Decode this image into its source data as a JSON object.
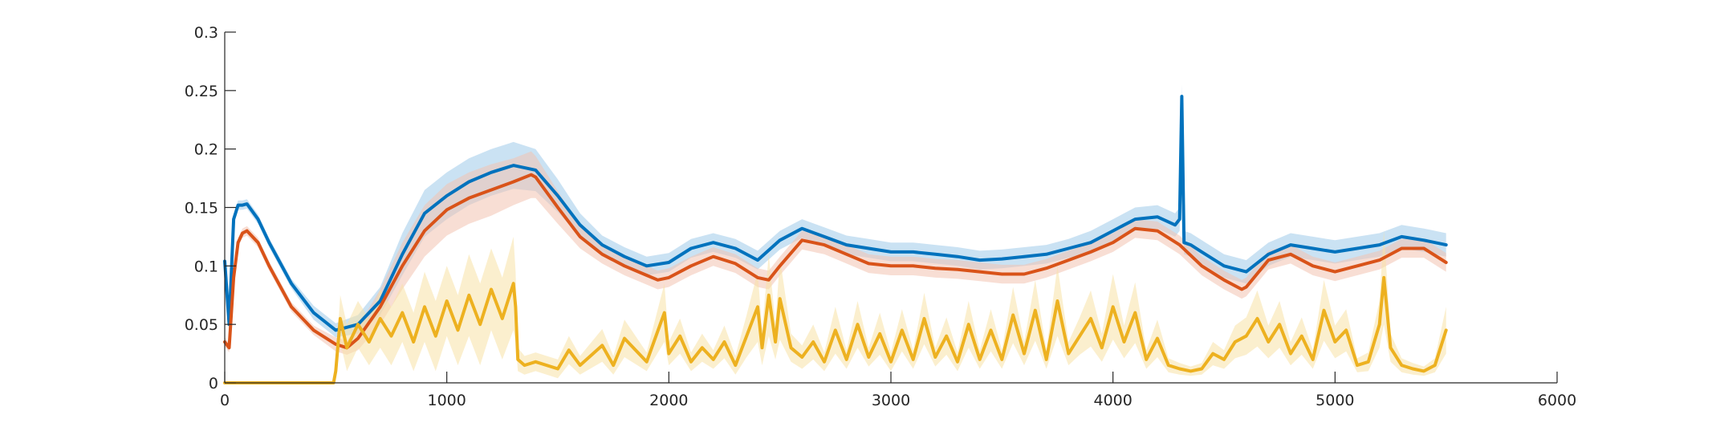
{
  "chart_data": {
    "type": "line",
    "title": "",
    "xlabel": "",
    "ylabel": "",
    "xlim": [
      0,
      6000
    ],
    "ylim": [
      0,
      0.3
    ],
    "x_ticks": [
      0,
      1000,
      2000,
      3000,
      4000,
      5000,
      6000
    ],
    "x_tick_labels": [
      "0",
      "1000",
      "2000",
      "3000",
      "4000",
      "5000",
      "6000"
    ],
    "y_ticks": [
      0,
      0.05,
      0.1,
      0.15,
      0.2,
      0.25,
      0.3
    ],
    "y_tick_labels": [
      "0",
      "0.05",
      "0.1",
      "0.15",
      "0.2",
      "0.25",
      "0.3"
    ],
    "grid": false,
    "legend": "none",
    "series": [
      {
        "color": "#0072BD",
        "band_color": "#9ECAE9",
        "x": [
          0,
          20,
          40,
          60,
          80,
          100,
          150,
          200,
          300,
          400,
          500,
          600,
          700,
          800,
          900,
          1000,
          1100,
          1200,
          1300,
          1400,
          1500,
          1600,
          1700,
          1800,
          1900,
          2000,
          2100,
          2200,
          2300,
          2400,
          2500,
          2600,
          2700,
          2800,
          2900,
          3000,
          3100,
          3200,
          3300,
          3400,
          3500,
          3600,
          3700,
          3800,
          3900,
          4000,
          4100,
          4200,
          4280,
          4300,
          4310,
          4320,
          4350,
          4400,
          4500,
          4600,
          4700,
          4800,
          4900,
          5000,
          5100,
          5200,
          5300,
          5400,
          5500
        ],
        "y": [
          0.104,
          0.05,
          0.14,
          0.152,
          0.152,
          0.153,
          0.14,
          0.12,
          0.085,
          0.06,
          0.045,
          0.05,
          0.07,
          0.11,
          0.145,
          0.16,
          0.172,
          0.18,
          0.186,
          0.182,
          0.16,
          0.135,
          0.118,
          0.108,
          0.1,
          0.103,
          0.115,
          0.12,
          0.115,
          0.105,
          0.122,
          0.132,
          0.125,
          0.118,
          0.115,
          0.112,
          0.112,
          0.11,
          0.108,
          0.105,
          0.106,
          0.108,
          0.11,
          0.115,
          0.12,
          0.13,
          0.14,
          0.142,
          0.135,
          0.14,
          0.245,
          0.12,
          0.118,
          0.112,
          0.1,
          0.095,
          0.11,
          0.118,
          0.115,
          0.112,
          0.115,
          0.118,
          0.125,
          0.122,
          0.118
        ],
        "band": [
          0.004,
          0.004,
          0.004,
          0.004,
          0.004,
          0.004,
          0.004,
          0.004,
          0.004,
          0.006,
          0.006,
          0.008,
          0.012,
          0.018,
          0.02,
          0.02,
          0.02,
          0.02,
          0.02,
          0.018,
          0.014,
          0.01,
          0.008,
          0.008,
          0.008,
          0.008,
          0.008,
          0.008,
          0.008,
          0.008,
          0.008,
          0.008,
          0.008,
          0.008,
          0.008,
          0.008,
          0.008,
          0.008,
          0.008,
          0.008,
          0.008,
          0.008,
          0.008,
          0.008,
          0.01,
          0.01,
          0.01,
          0.01,
          0.01,
          0.01,
          0.01,
          0.01,
          0.01,
          0.01,
          0.01,
          0.01,
          0.01,
          0.01,
          0.01,
          0.01,
          0.01,
          0.01,
          0.01,
          0.01,
          0.01
        ]
      },
      {
        "color": "#D95319",
        "band_color": "#F2C3B0",
        "x": [
          0,
          20,
          40,
          60,
          80,
          100,
          150,
          200,
          300,
          400,
          500,
          550,
          600,
          700,
          800,
          900,
          1000,
          1100,
          1200,
          1300,
          1380,
          1400,
          1500,
          1600,
          1700,
          1800,
          1900,
          1950,
          2000,
          2100,
          2200,
          2300,
          2400,
          2450,
          2500,
          2600,
          2700,
          2800,
          2900,
          3000,
          3100,
          3200,
          3300,
          3400,
          3500,
          3600,
          3700,
          3800,
          3900,
          4000,
          4100,
          4200,
          4300,
          4400,
          4500,
          4580,
          4600,
          4700,
          4800,
          4900,
          5000,
          5100,
          5200,
          5300,
          5400,
          5500
        ],
        "y": [
          0.035,
          0.03,
          0.09,
          0.12,
          0.128,
          0.13,
          0.12,
          0.1,
          0.065,
          0.045,
          0.033,
          0.03,
          0.038,
          0.065,
          0.1,
          0.13,
          0.148,
          0.158,
          0.165,
          0.172,
          0.178,
          0.176,
          0.15,
          0.125,
          0.11,
          0.1,
          0.092,
          0.088,
          0.09,
          0.1,
          0.108,
          0.102,
          0.09,
          0.088,
          0.1,
          0.122,
          0.118,
          0.11,
          0.102,
          0.1,
          0.1,
          0.098,
          0.097,
          0.095,
          0.093,
          0.093,
          0.098,
          0.105,
          0.112,
          0.12,
          0.132,
          0.13,
          0.118,
          0.1,
          0.088,
          0.08,
          0.082,
          0.105,
          0.11,
          0.1,
          0.095,
          0.1,
          0.105,
          0.115,
          0.115,
          0.103
        ],
        "band": [
          0.004,
          0.004,
          0.004,
          0.004,
          0.004,
          0.004,
          0.004,
          0.004,
          0.004,
          0.004,
          0.006,
          0.006,
          0.01,
          0.015,
          0.02,
          0.022,
          0.022,
          0.022,
          0.022,
          0.02,
          0.02,
          0.018,
          0.014,
          0.01,
          0.008,
          0.008,
          0.008,
          0.008,
          0.008,
          0.008,
          0.008,
          0.008,
          0.008,
          0.008,
          0.008,
          0.008,
          0.008,
          0.008,
          0.008,
          0.008,
          0.008,
          0.008,
          0.008,
          0.008,
          0.008,
          0.008,
          0.008,
          0.008,
          0.008,
          0.008,
          0.008,
          0.008,
          0.008,
          0.008,
          0.008,
          0.008,
          0.008,
          0.008,
          0.008,
          0.008,
          0.008,
          0.008,
          0.008,
          0.008,
          0.008,
          0.008
        ]
      },
      {
        "color": "#EDB120",
        "band_color": "#F8E2A6",
        "x": [
          0,
          100,
          200,
          300,
          400,
          490,
          500,
          520,
          550,
          600,
          650,
          700,
          750,
          800,
          850,
          900,
          950,
          1000,
          1050,
          1100,
          1150,
          1200,
          1250,
          1300,
          1310,
          1320,
          1350,
          1400,
          1500,
          1550,
          1600,
          1700,
          1750,
          1800,
          1900,
          1980,
          2000,
          2050,
          2100,
          2150,
          2200,
          2250,
          2300,
          2350,
          2400,
          2420,
          2450,
          2480,
          2500,
          2550,
          2600,
          2650,
          2700,
          2750,
          2800,
          2850,
          2900,
          2950,
          3000,
          3050,
          3100,
          3150,
          3200,
          3250,
          3300,
          3350,
          3400,
          3450,
          3500,
          3550,
          3600,
          3650,
          3700,
          3750,
          3800,
          3850,
          3900,
          3950,
          4000,
          4050,
          4100,
          4150,
          4200,
          4250,
          4300,
          4350,
          4400,
          4450,
          4500,
          4550,
          4600,
          4650,
          4700,
          4750,
          4800,
          4850,
          4900,
          4950,
          5000,
          5050,
          5100,
          5150,
          5200,
          5220,
          5250,
          5300,
          5350,
          5400,
          5450,
          5500
        ],
        "y": [
          0,
          0,
          0,
          0,
          0,
          0,
          0.01,
          0.055,
          0.03,
          0.05,
          0.035,
          0.055,
          0.04,
          0.06,
          0.035,
          0.065,
          0.04,
          0.07,
          0.045,
          0.075,
          0.05,
          0.08,
          0.055,
          0.085,
          0.065,
          0.02,
          0.015,
          0.018,
          0.012,
          0.028,
          0.015,
          0.032,
          0.015,
          0.038,
          0.018,
          0.06,
          0.025,
          0.04,
          0.018,
          0.03,
          0.02,
          0.035,
          0.015,
          0.04,
          0.065,
          0.03,
          0.075,
          0.035,
          0.072,
          0.03,
          0.022,
          0.035,
          0.018,
          0.045,
          0.02,
          0.05,
          0.022,
          0.042,
          0.018,
          0.045,
          0.02,
          0.055,
          0.022,
          0.04,
          0.018,
          0.05,
          0.02,
          0.045,
          0.02,
          0.058,
          0.025,
          0.062,
          0.02,
          0.07,
          0.025,
          0.04,
          0.055,
          0.03,
          0.065,
          0.035,
          0.06,
          0.02,
          0.038,
          0.015,
          0.012,
          0.01,
          0.012,
          0.025,
          0.02,
          0.035,
          0.04,
          0.055,
          0.035,
          0.05,
          0.025,
          0.04,
          0.02,
          0.062,
          0.035,
          0.045,
          0.015,
          0.018,
          0.05,
          0.09,
          0.03,
          0.015,
          0.012,
          0.01,
          0.015,
          0.045
        ],
        "band": [
          0,
          0,
          0,
          0,
          0,
          0,
          0.005,
          0.02,
          0.02,
          0.02,
          0.02,
          0.025,
          0.025,
          0.025,
          0.025,
          0.03,
          0.03,
          0.03,
          0.03,
          0.035,
          0.035,
          0.035,
          0.035,
          0.04,
          0.03,
          0.01,
          0.008,
          0.008,
          0.008,
          0.012,
          0.008,
          0.014,
          0.008,
          0.016,
          0.008,
          0.025,
          0.01,
          0.015,
          0.008,
          0.012,
          0.008,
          0.014,
          0.008,
          0.018,
          0.03,
          0.015,
          0.035,
          0.015,
          0.035,
          0.012,
          0.01,
          0.015,
          0.008,
          0.02,
          0.008,
          0.02,
          0.008,
          0.018,
          0.008,
          0.018,
          0.008,
          0.022,
          0.008,
          0.016,
          0.008,
          0.02,
          0.008,
          0.018,
          0.008,
          0.024,
          0.01,
          0.026,
          0.008,
          0.03,
          0.01,
          0.016,
          0.024,
          0.012,
          0.028,
          0.014,
          0.026,
          0.008,
          0.016,
          0.006,
          0.005,
          0.004,
          0.005,
          0.01,
          0.008,
          0.014,
          0.016,
          0.024,
          0.014,
          0.02,
          0.01,
          0.016,
          0.008,
          0.026,
          0.014,
          0.018,
          0.006,
          0.008,
          0.02,
          0.04,
          0.012,
          0.006,
          0.005,
          0.004,
          0.006,
          0.02
        ]
      }
    ]
  }
}
